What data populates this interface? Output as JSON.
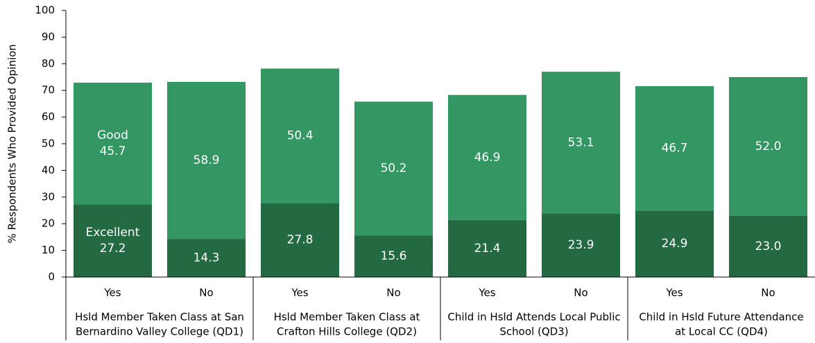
{
  "chart_data": {
    "type": "stacked_bar",
    "y_label": "% Respondents Who Provided Opinion",
    "categories": [
      "Yes",
      "No",
      "Yes",
      "No",
      "Yes",
      "No",
      "Yes",
      "No"
    ],
    "groups": [
      [
        "Hsld Member Taken Class at San",
        "Bernardino Valley College (QD1)"
      ],
      [
        "Hsld Member Taken Class at",
        "Crafton Hills College (QD2)"
      ],
      [
        "Child in Hsld Attends Local Public",
        "School (QD3)"
      ],
      [
        "Child in Hsld Future Attendance",
        "at Local CC (QD4)"
      ]
    ],
    "series": [
      {
        "name": "Excellent",
        "color": "#236a42",
        "values": [
          27.2,
          14.3,
          27.8,
          15.6,
          21.4,
          23.9,
          24.9,
          23.0
        ],
        "value_labels": [
          "27.2",
          "14.3",
          "27.8",
          "15.6",
          "21.4",
          "23.9",
          "24.9",
          "23.0"
        ]
      },
      {
        "name": "Good",
        "color": "#339663",
        "values": [
          45.7,
          58.9,
          50.4,
          50.2,
          46.9,
          53.1,
          46.7,
          52.0
        ],
        "value_labels": [
          "45.7",
          "58.9",
          "50.4",
          "50.2",
          "46.9",
          "53.1",
          "46.7",
          "52.0"
        ]
      }
    ],
    "ylim": [
      0,
      100
    ],
    "yticks": [
      0,
      10,
      20,
      30,
      40,
      50,
      60,
      70,
      80,
      90,
      100
    ],
    "grid": false
  }
}
